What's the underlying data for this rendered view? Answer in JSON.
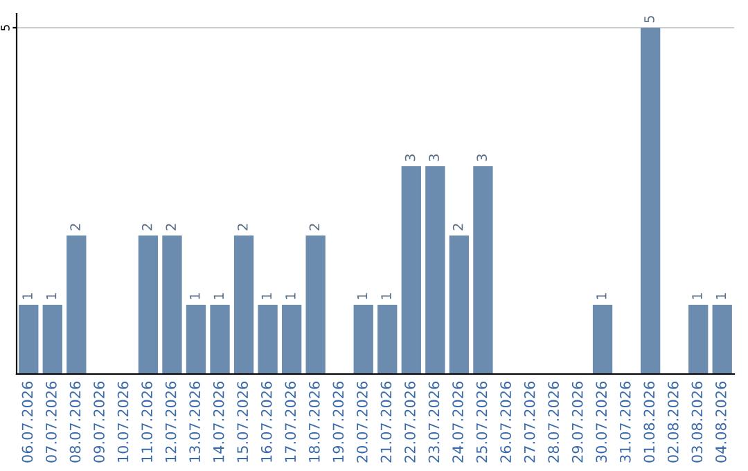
{
  "chart_data": {
    "type": "bar",
    "categories": [
      "06.07.2026",
      "07.07.2026",
      "08.07.2026",
      "09.07.2026",
      "10.07.2026",
      "11.07.2026",
      "12.07.2026",
      "13.07.2026",
      "14.07.2026",
      "15.07.2026",
      "16.07.2026",
      "17.07.2026",
      "18.07.2026",
      "19.07.2026",
      "20.07.2026",
      "21.07.2026",
      "22.07.2026",
      "23.07.2026",
      "24.07.2026",
      "25.07.2026",
      "26.07.2026",
      "27.07.2026",
      "28.07.2026",
      "29.07.2026",
      "30.07.2026",
      "31.07.2026",
      "01.08.2026",
      "02.08.2026",
      "03.08.2026",
      "04.08.2026"
    ],
    "values": [
      1,
      1,
      2,
      0,
      0,
      2,
      2,
      1,
      1,
      2,
      1,
      1,
      2,
      0,
      1,
      1,
      3,
      3,
      2,
      3,
      0,
      0,
      0,
      0,
      1,
      0,
      5,
      0,
      1,
      1
    ],
    "value_labels": [
      "1",
      "1",
      "2",
      null,
      null,
      "2",
      "2",
      "1",
      "1",
      "2",
      "1",
      "1",
      "2",
      null,
      "1",
      "1",
      "3",
      "3",
      "2",
      "3",
      null,
      null,
      null,
      null,
      "1",
      null,
      "5",
      null,
      "1",
      "1"
    ],
    "color": "#6b8cae",
    "ylim": [
      0,
      5.2
    ],
    "yticks": [
      5
    ],
    "grid": "y"
  }
}
